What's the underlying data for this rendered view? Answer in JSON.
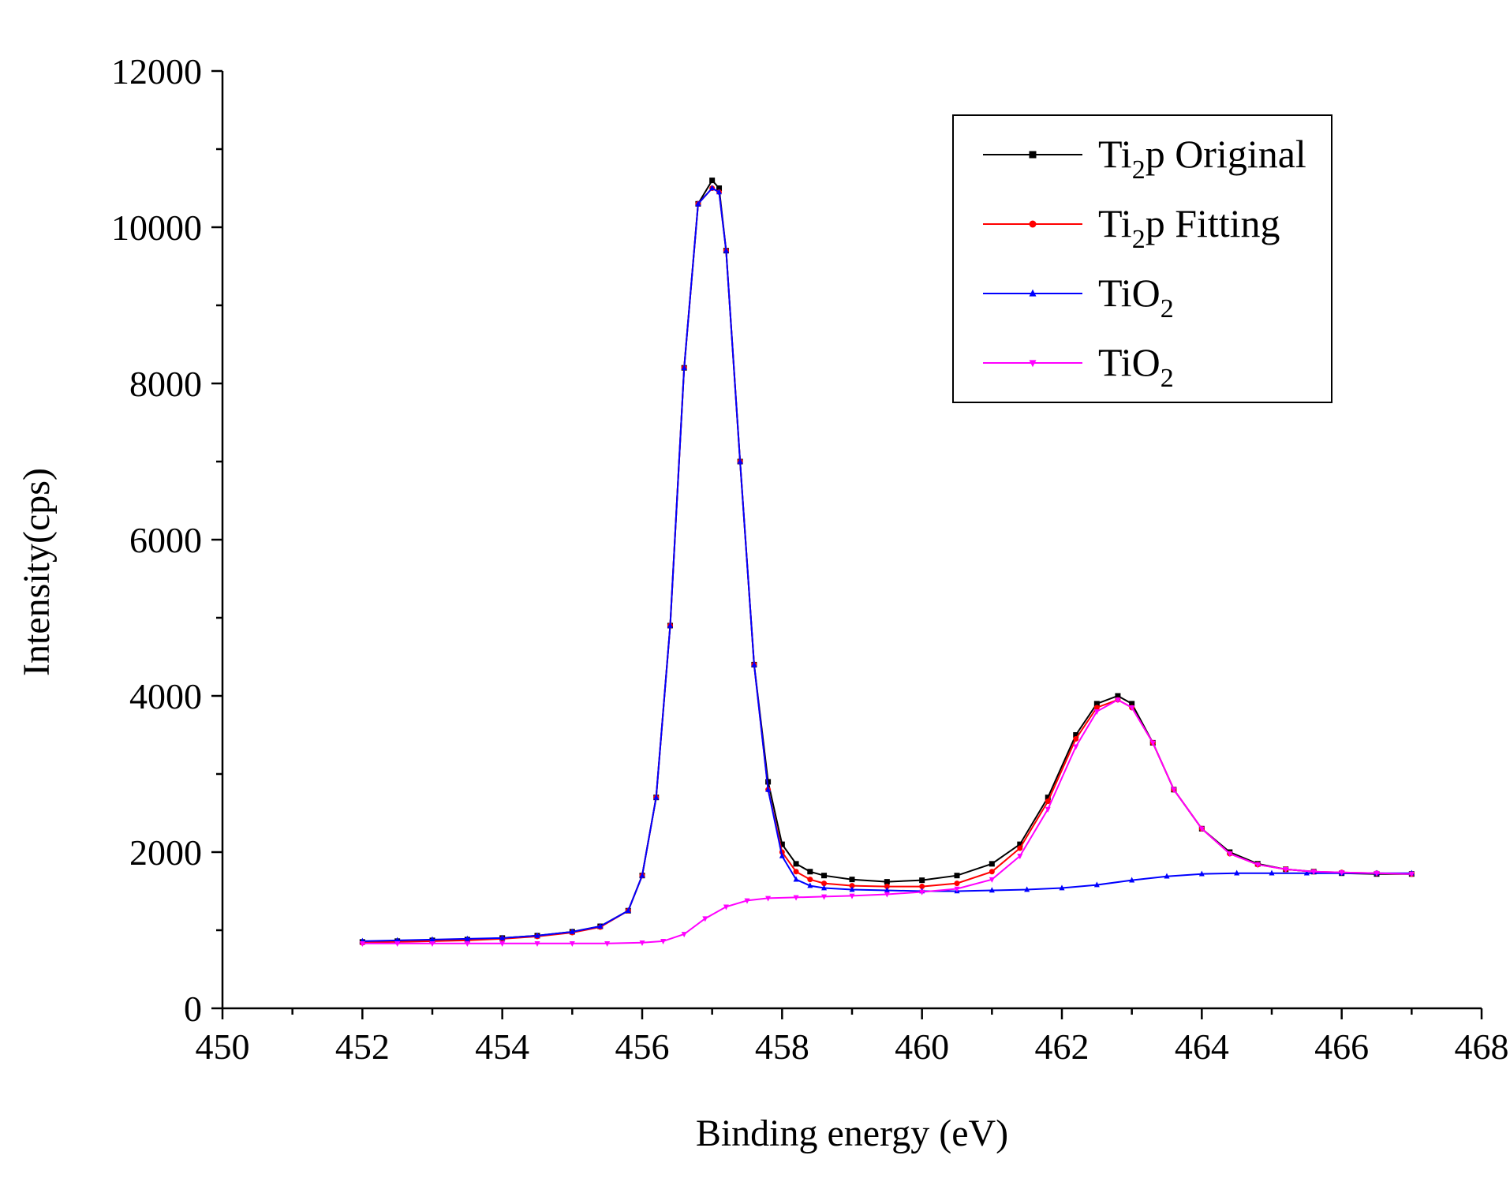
{
  "chart_data": {
    "type": "line",
    "title": "",
    "xlabel": "Binding energy (eV)",
    "ylabel": "Intensity(cps)",
    "xlim": [
      450,
      468
    ],
    "ylim": [
      0,
      12000
    ],
    "x_ticks": [
      450,
      452,
      454,
      456,
      458,
      460,
      462,
      464,
      466,
      468
    ],
    "y_ticks": [
      0,
      2000,
      4000,
      6000,
      8000,
      10000,
      12000
    ],
    "x_tick_labels": [
      "450",
      "452",
      "454",
      "456",
      "458",
      "460",
      "462",
      "464",
      "466",
      "468"
    ],
    "y_tick_labels": [
      "0",
      "2000",
      "4000",
      "6000",
      "8000",
      "10000",
      "12000"
    ],
    "grid": false,
    "legend_position": "top-right",
    "series": [
      {
        "name": "Ti2p Original",
        "legend_main": "Ti",
        "legend_sub": "2",
        "legend_rest": "p Original",
        "color": "#000000",
        "marker": "square",
        "x": [
          452.0,
          452.5,
          453.0,
          453.5,
          454.0,
          454.5,
          455.0,
          455.4,
          455.8,
          456.0,
          456.2,
          456.4,
          456.6,
          456.8,
          457.0,
          457.1,
          457.2,
          457.4,
          457.6,
          457.8,
          458.0,
          458.2,
          458.4,
          458.6,
          459.0,
          459.5,
          460.0,
          460.5,
          461.0,
          461.4,
          461.8,
          462.2,
          462.5,
          462.8,
          463.0,
          463.3,
          463.6,
          464.0,
          464.4,
          464.8,
          465.2,
          465.6,
          466.0,
          466.5,
          467.0
        ],
        "y": [
          850,
          860,
          870,
          880,
          900,
          930,
          980,
          1050,
          1250,
          1700,
          2700,
          4900,
          8200,
          10300,
          10600,
          10500,
          9700,
          7000,
          4400,
          2900,
          2100,
          1850,
          1750,
          1700,
          1650,
          1620,
          1640,
          1700,
          1850,
          2100,
          2700,
          3500,
          3900,
          4000,
          3900,
          3400,
          2800,
          2300,
          2000,
          1850,
          1780,
          1750,
          1730,
          1720,
          1720
        ]
      },
      {
        "name": "Ti2p Fitting",
        "legend_main": "Ti",
        "legend_sub": "2",
        "legend_rest": "p Fitting",
        "color": "#ff0000",
        "marker": "circle",
        "x": [
          452.0,
          452.5,
          453.0,
          453.5,
          454.0,
          454.5,
          455.0,
          455.4,
          455.8,
          456.0,
          456.2,
          456.4,
          456.6,
          456.8,
          457.0,
          457.1,
          457.2,
          457.4,
          457.6,
          457.8,
          458.0,
          458.2,
          458.4,
          458.6,
          459.0,
          459.5,
          460.0,
          460.5,
          461.0,
          461.4,
          461.8,
          462.2,
          462.5,
          462.8,
          463.0,
          463.3,
          463.6,
          464.0,
          464.4,
          464.8,
          465.2,
          465.6,
          466.0,
          466.5,
          467.0
        ],
        "y": [
          840,
          850,
          860,
          870,
          890,
          920,
          970,
          1040,
          1250,
          1700,
          2700,
          4900,
          8200,
          10300,
          10500,
          10450,
          9700,
          7000,
          4400,
          2800,
          2000,
          1750,
          1650,
          1600,
          1570,
          1560,
          1560,
          1600,
          1750,
          2050,
          2650,
          3450,
          3850,
          3950,
          3850,
          3400,
          2800,
          2300,
          1980,
          1840,
          1780,
          1750,
          1740,
          1730,
          1720
        ]
      },
      {
        "name": "TiO2",
        "legend_main": "TiO",
        "legend_sub": "2",
        "legend_rest": "",
        "color": "#0000ff",
        "marker": "triangle-up",
        "x": [
          452.0,
          452.5,
          453.0,
          453.5,
          454.0,
          454.5,
          455.0,
          455.4,
          455.8,
          456.0,
          456.2,
          456.4,
          456.6,
          456.8,
          457.0,
          457.1,
          457.2,
          457.4,
          457.6,
          457.8,
          458.0,
          458.2,
          458.4,
          458.6,
          459.0,
          459.5,
          460.0,
          460.5,
          461.0,
          461.5,
          462.0,
          462.5,
          463.0,
          463.5,
          464.0,
          464.5,
          465.0,
          465.5,
          466.0,
          466.5,
          467.0
        ],
        "y": [
          860,
          870,
          880,
          890,
          900,
          930,
          980,
          1050,
          1250,
          1700,
          2700,
          4900,
          8200,
          10300,
          10500,
          10450,
          9700,
          7000,
          4400,
          2800,
          1950,
          1650,
          1570,
          1540,
          1520,
          1510,
          1500,
          1500,
          1510,
          1520,
          1540,
          1580,
          1640,
          1690,
          1720,
          1730,
          1730,
          1730,
          1730,
          1730,
          1730
        ]
      },
      {
        "name": "TiO2",
        "legend_main": "TiO",
        "legend_sub": "2",
        "legend_rest": "",
        "color": "#ff00ff",
        "marker": "triangle-down",
        "x": [
          452.0,
          452.5,
          453.0,
          453.5,
          454.0,
          454.5,
          455.0,
          455.5,
          456.0,
          456.3,
          456.6,
          456.9,
          457.2,
          457.5,
          457.8,
          458.2,
          458.6,
          459.0,
          459.5,
          460.0,
          460.5,
          461.0,
          461.4,
          461.8,
          462.2,
          462.5,
          462.8,
          463.0,
          463.3,
          463.6,
          464.0,
          464.4,
          464.8,
          465.2,
          465.6,
          466.0,
          466.5,
          467.0
        ],
        "y": [
          830,
          830,
          830,
          830,
          830,
          830,
          830,
          830,
          840,
          860,
          950,
          1150,
          1300,
          1380,
          1410,
          1420,
          1430,
          1440,
          1460,
          1490,
          1530,
          1650,
          1950,
          2550,
          3350,
          3800,
          3950,
          3850,
          3400,
          2800,
          2300,
          1980,
          1840,
          1780,
          1750,
          1740,
          1730,
          1720
        ]
      }
    ]
  }
}
